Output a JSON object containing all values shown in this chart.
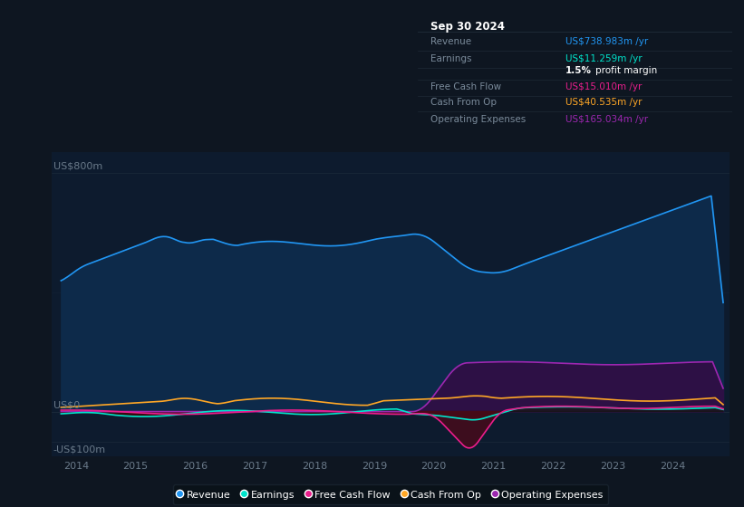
{
  "bg_color": "#0e1621",
  "plot_bg_color": "#0d1b2e",
  "info_box_bg": "#080e14",
  "ylabel_top": "US$800m",
  "ylabel_zero": "US$0",
  "ylabel_neg": "-US$100m",
  "info_box": {
    "title": "Sep 30 2024",
    "rows": [
      {
        "label": "Revenue",
        "value": "US$738.983m /yr",
        "value_color": "#2196f3"
      },
      {
        "label": "Earnings",
        "value": "US$11.259m /yr",
        "value_color": "#00e5cc"
      },
      {
        "label": "",
        "value": "1.5% profit margin",
        "value_color": "#ffffff",
        "bold_part": "1.5%"
      },
      {
        "label": "Free Cash Flow",
        "value": "US$15.010m /yr",
        "value_color": "#e91e8c"
      },
      {
        "label": "Cash From Op",
        "value": "US$40.535m /yr",
        "value_color": "#ffa726"
      },
      {
        "label": "Operating Expenses",
        "value": "US$165.034m /yr",
        "value_color": "#9c27b0"
      }
    ]
  },
  "legend": [
    {
      "label": "Revenue",
      "color": "#2196f3"
    },
    {
      "label": "Earnings",
      "color": "#00e5cc"
    },
    {
      "label": "Free Cash Flow",
      "color": "#e91e8c"
    },
    {
      "label": "Cash From Op",
      "color": "#ffa726"
    },
    {
      "label": "Operating Expenses",
      "color": "#9c27b0"
    }
  ],
  "revenue_color": "#2196f3",
  "revenue_fill": "#0d2a4a",
  "earnings_color": "#00e5cc",
  "fcf_color": "#e91e8c",
  "fcf_fill": "#3a0020",
  "cashop_color": "#ffa726",
  "opex_color": "#9c27b0",
  "opex_fill": "#2d1045",
  "grid_color": "#1a2a3a",
  "tick_color": "#6a7a8a",
  "label_color": "#6a7a8a",
  "info_label_color": "#7a8a9a",
  "info_border_color": "#1a2a3a",
  "years_ticks": [
    2014,
    2015,
    2016,
    2017,
    2018,
    2019,
    2020,
    2021,
    2022,
    2023,
    2024
  ]
}
